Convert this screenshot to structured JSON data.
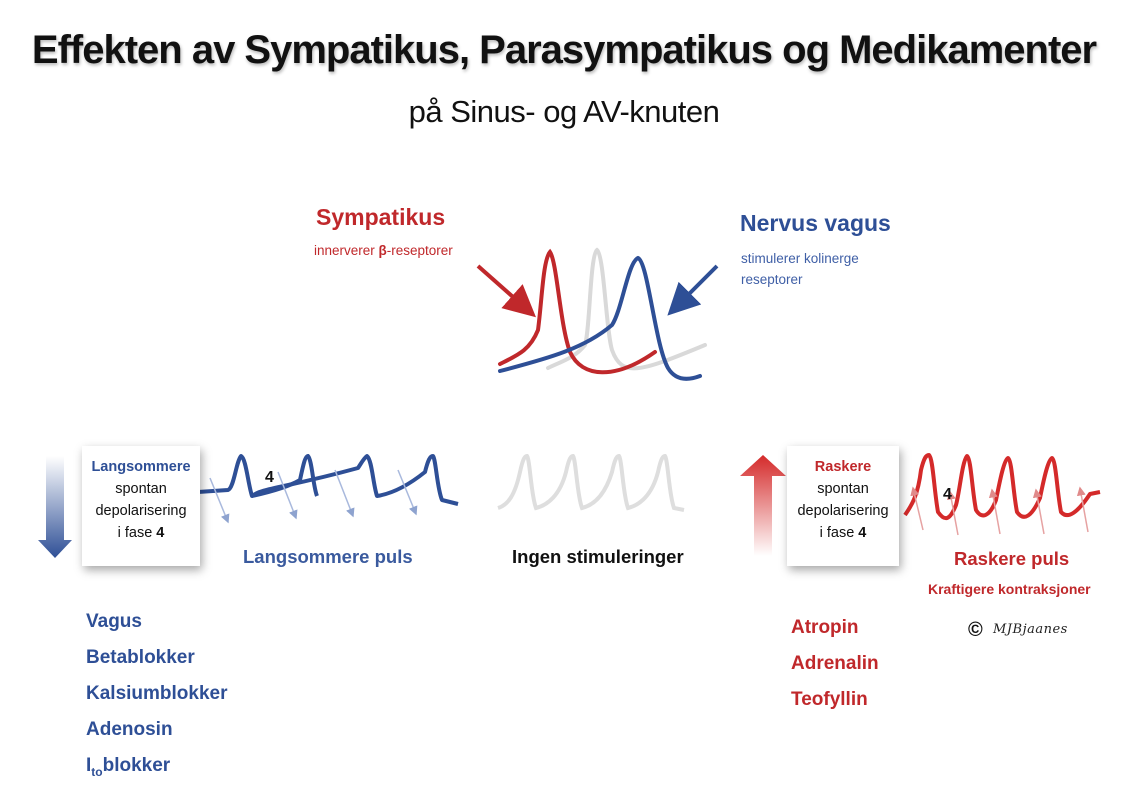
{
  "header": {
    "title": "Effekten av Sympatikus, Parasympatikus og Medikamenter",
    "subtitle": "på Sinus- og AV-knuten"
  },
  "top": {
    "sympatikus_title": "Sympatikus",
    "sympatikus_sub_pre": "innerverer ",
    "sympatikus_sub_bold": "β",
    "sympatikus_sub_post": "-reseptorer",
    "vagus_title": "Nervus vagus",
    "vagus_sub": "stimulerer kolinerge reseptorer"
  },
  "left": {
    "box_highlight": "Langsommere",
    "box_line2": "spontan",
    "box_line3": "depolarisering",
    "box_line4_pre": "i fase ",
    "box_line4_bold": "4",
    "wave_number": "4",
    "wave_label": "Langsommere puls",
    "drugs": [
      "Vagus",
      "Betablokker",
      "Kalsiumblokker",
      "Adenosin"
    ],
    "last_drug_main": "I",
    "last_drug_sub": "to",
    "last_drug_rest": "blokker"
  },
  "middle": {
    "wave_label": "Ingen stimuleringer"
  },
  "right": {
    "box_highlight": "Raskere",
    "box_line2": "spontan",
    "box_line3": "depolarisering",
    "box_line4_pre": "i fase ",
    "box_line4_bold": "4",
    "wave_number": "4",
    "wave_label": "Raskere puls",
    "wave_sublabel": "Kraftigere kontraksjoner",
    "drugs": [
      "Atropin",
      "Adrenalin",
      "Teofyllin"
    ]
  },
  "signature": {
    "copyright_symbol": "©",
    "name": "MJBjaanes"
  },
  "colors": {
    "red": "#c0282b",
    "blue": "#2e4f96",
    "grey": "#d9d9d9"
  }
}
